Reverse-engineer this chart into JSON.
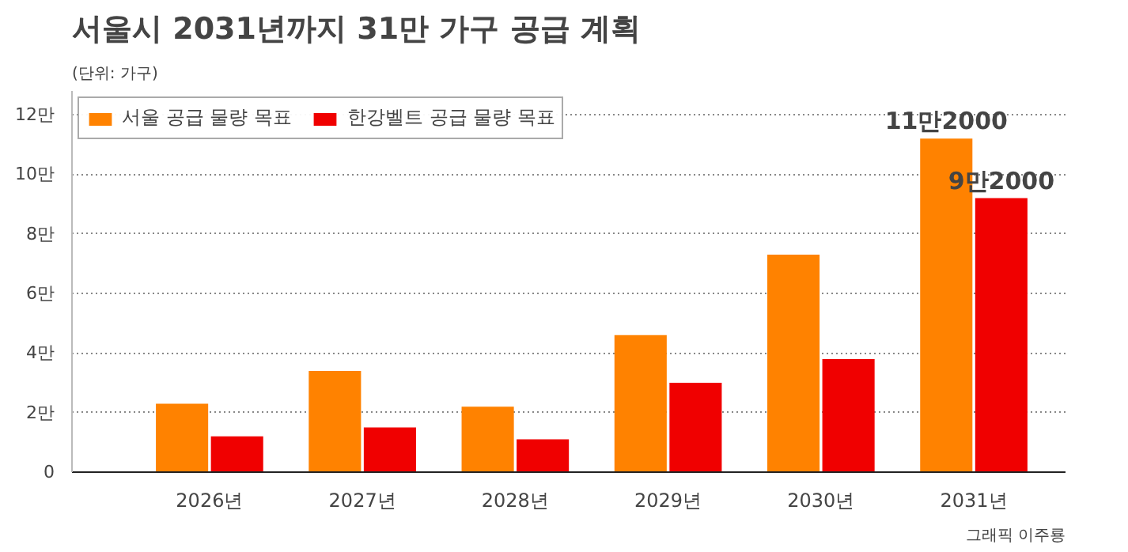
{
  "chart_data": {
    "type": "bar",
    "title": "서울시 2031년까지 31만 가구 공급 계획",
    "subtitle": "(단위: 가구)",
    "categories": [
      "2026년",
      "2027년",
      "2028년",
      "2029년",
      "2030년",
      "2031년"
    ],
    "series": [
      {
        "name": "서울 공급 물량 목표",
        "color": "#ff8200",
        "values": [
          2.3,
          3.4,
          2.2,
          4.6,
          7.3,
          11.2
        ],
        "value_labels": [
          null,
          null,
          null,
          null,
          null,
          "11만2000"
        ]
      },
      {
        "name": "한강벨트 공급 물량 목표",
        "color": "#f00000",
        "values": [
          1.2,
          1.5,
          1.1,
          3.0,
          3.8,
          9.2
        ],
        "value_labels": [
          null,
          null,
          null,
          null,
          null,
          "9만2000"
        ]
      }
    ],
    "ylim": [
      0,
      12.8
    ],
    "yticks": [
      {
        "value": 0,
        "label": "0"
      },
      {
        "value": 2,
        "label": "2만"
      },
      {
        "value": 4,
        "label": "4만"
      },
      {
        "value": 6,
        "label": "6만"
      },
      {
        "value": 8,
        "label": "8만"
      },
      {
        "value": 10,
        "label": "10만"
      },
      {
        "value": 12,
        "label": "12만"
      }
    ],
    "grid": "y",
    "legend": "top left",
    "annotations": [
      "그래픽 이주룡"
    ]
  }
}
